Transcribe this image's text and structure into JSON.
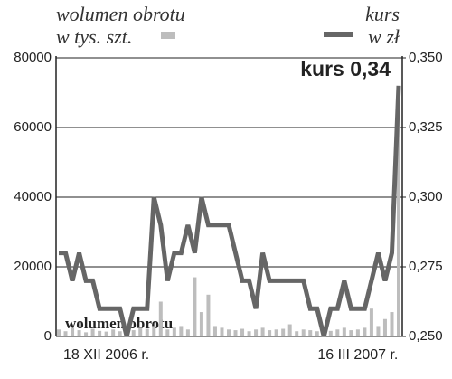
{
  "chart_data": {
    "type": "bar-line",
    "categories": [
      null,
      null,
      null,
      null,
      null,
      null,
      null,
      "18 XII 2006 r.",
      null,
      null,
      null,
      null,
      null,
      null,
      null,
      null,
      null,
      null,
      null,
      null,
      null,
      null,
      null,
      null,
      null,
      null,
      null,
      null,
      null,
      null,
      null,
      null,
      null,
      null,
      null,
      null,
      null,
      null,
      null,
      null,
      null,
      null,
      null,
      null,
      "16 III 2007 r.",
      null,
      null,
      null,
      null,
      null,
      null
    ],
    "series": [
      {
        "name": "wolumen obrotu",
        "unit": "w tys. szt.",
        "type": "bar",
        "color": "#bdbdbd",
        "values": [
          2000,
          1500,
          2500,
          1800,
          1200,
          2200,
          1600,
          1400,
          2000,
          1500,
          1000,
          1800,
          2500,
          2200,
          3000,
          10000,
          2000,
          2500,
          3000,
          2000,
          17000,
          7000,
          12000,
          3000,
          2500,
          2000,
          1800,
          2200,
          1500,
          2000,
          2500,
          1800,
          2000,
          2200,
          3500,
          1500,
          2000,
          1800,
          1500,
          1200,
          1600,
          2000,
          2500,
          1800,
          2000,
          2500,
          8000,
          3000,
          5000,
          7000,
          71000
        ]
      },
      {
        "name": "kurs",
        "unit": "w zł",
        "type": "line",
        "axis": "y2",
        "color": "#666666",
        "values": [
          0.28,
          0.28,
          0.27,
          0.28,
          0.27,
          0.27,
          0.26,
          0.26,
          0.26,
          0.26,
          0.25,
          0.26,
          0.26,
          0.26,
          0.3,
          0.29,
          0.27,
          0.28,
          0.28,
          0.29,
          0.28,
          0.3,
          0.29,
          0.29,
          0.29,
          0.29,
          0.28,
          0.27,
          0.27,
          0.26,
          0.28,
          0.27,
          0.27,
          0.27,
          0.27,
          0.27,
          0.27,
          0.26,
          0.26,
          0.25,
          0.26,
          0.26,
          0.27,
          0.26,
          0.26,
          0.26,
          0.27,
          0.28,
          0.27,
          0.28,
          0.34
        ]
      }
    ],
    "annotations": [
      "kurs 0,34",
      "wolumen obrotu"
    ],
    "ylim": [
      0,
      80000
    ],
    "yticks": [
      0,
      20000,
      40000,
      60000,
      80000
    ],
    "y2lim": [
      0.25,
      0.35
    ],
    "y2ticks": [
      {
        "value": 0.25,
        "label": "0,250"
      },
      {
        "value": 0.275,
        "label": "0,275"
      },
      {
        "value": 0.3,
        "label": "0,300"
      },
      {
        "value": 0.325,
        "label": "0,325"
      },
      {
        "value": 0.35,
        "label": "0,350"
      }
    ],
    "grid": true
  }
}
